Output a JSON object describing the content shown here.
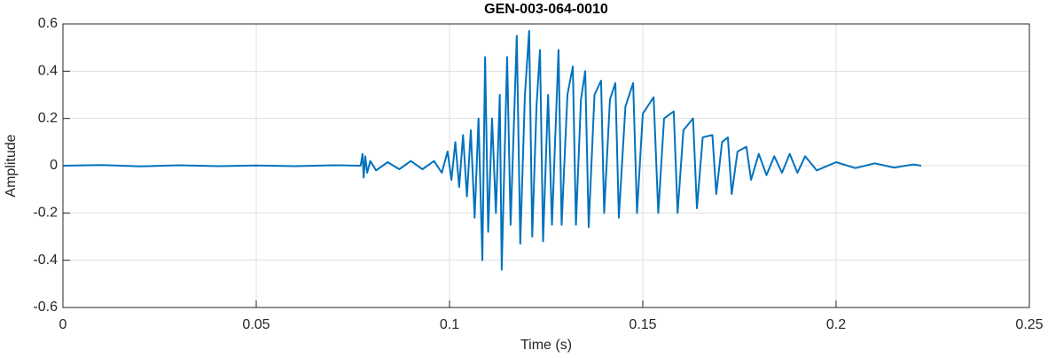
{
  "chart_data": {
    "type": "line",
    "title": "GEN-003-064-0010",
    "x_label": "Time (s)",
    "y_label": "Amplitude",
    "xlim": [
      0,
      0.25
    ],
    "xticks": [
      0,
      0.05,
      0.1,
      0.15,
      0.2,
      0.25
    ],
    "ylim": [
      -0.6,
      0.6
    ],
    "yticks": [
      -0.6,
      -0.4,
      -0.2,
      0,
      0.2,
      0.4,
      0.6
    ],
    "grid": true,
    "x": [
      0,
      0.01,
      0.02,
      0.03,
      0.04,
      0.05,
      0.06,
      0.07,
      0.077,
      0.0775,
      0.0778,
      0.0782,
      0.0787,
      0.0795,
      0.081,
      0.084,
      0.087,
      0.09,
      0.093,
      0.096,
      0.098,
      0.0995,
      0.1005,
      0.1015,
      0.1025,
      0.1035,
      0.1045,
      0.1055,
      0.1065,
      0.1075,
      0.1085,
      0.1092,
      0.11,
      0.111,
      0.112,
      0.113,
      0.1135,
      0.1149,
      0.1158,
      0.1174,
      0.1183,
      0.1195,
      0.1206,
      0.1214,
      0.1225,
      0.1234,
      0.1242,
      0.1255,
      0.1265,
      0.1282,
      0.129,
      0.1305,
      0.1319,
      0.1327,
      0.134,
      0.1351,
      0.136,
      0.1375,
      0.1392,
      0.14,
      0.1415,
      0.1429,
      0.1438,
      0.1455,
      0.1475,
      0.1485,
      0.15,
      0.1528,
      0.154,
      0.1555,
      0.158,
      0.159,
      0.1605,
      0.163,
      0.164,
      0.1655,
      0.168,
      0.169,
      0.1705,
      0.172,
      0.173,
      0.1745,
      0.1768,
      0.178,
      0.18,
      0.182,
      0.184,
      0.186,
      0.188,
      0.19,
      0.192,
      0.195,
      0.2,
      0.205,
      0.21,
      0.215,
      0.22,
      0.222
    ],
    "series": [
      {
        "color": "#0072bd",
        "values": [
          0,
          0.003,
          -0.003,
          0.002,
          -0.002,
          0.001,
          -0.002,
          0.002,
          0,
          0.05,
          -0.05,
          0.04,
          -0.03,
          0.02,
          -0.02,
          0.015,
          -0.015,
          0.02,
          -0.015,
          0.02,
          -0.03,
          0.06,
          -0.06,
          0.1,
          -0.09,
          0.13,
          -0.13,
          0.15,
          -0.22,
          0.2,
          -0.4,
          0.46,
          -0.28,
          0.2,
          -0.2,
          0.3,
          -0.44,
          0.46,
          -0.25,
          0.55,
          -0.33,
          0.3,
          0.57,
          -0.3,
          0.25,
          0.49,
          -0.32,
          0.3,
          -0.25,
          0.49,
          -0.25,
          0.3,
          0.42,
          -0.25,
          0.28,
          0.4,
          -0.26,
          0.3,
          0.36,
          -0.2,
          0.28,
          0.35,
          -0.22,
          0.25,
          0.35,
          -0.2,
          0.22,
          0.29,
          -0.2,
          0.2,
          0.23,
          -0.2,
          0.15,
          0.2,
          -0.18,
          0.12,
          0.13,
          -0.12,
          0.1,
          0.12,
          -0.12,
          0.06,
          0.08,
          -0.06,
          0.05,
          -0.04,
          0.04,
          -0.03,
          0.05,
          -0.03,
          0.04,
          -0.02,
          0.015,
          -0.01,
          0.01,
          -0.008,
          0.005,
          0
        ]
      }
    ]
  }
}
